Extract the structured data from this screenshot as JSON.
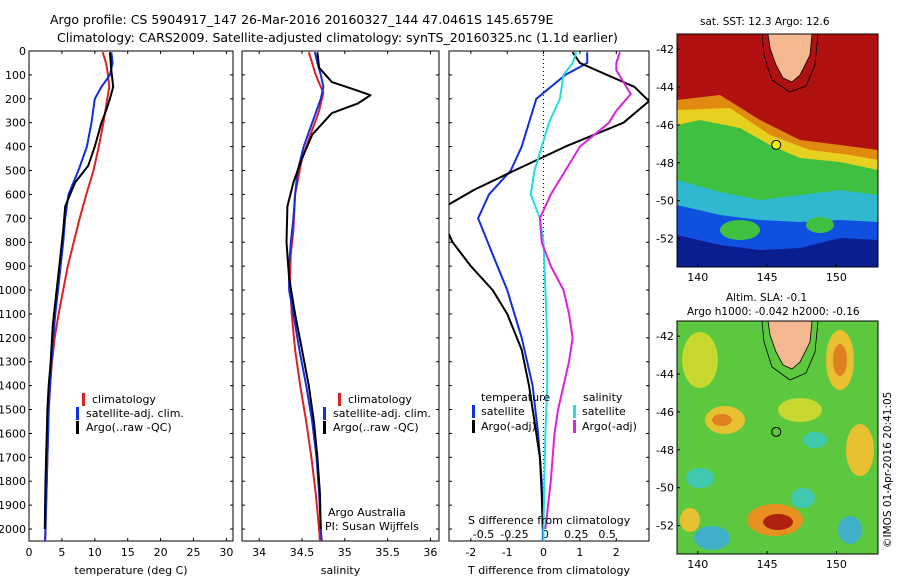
{
  "header": {
    "line1": "Argo profile: CS 5904917_147 26-Mar-2016 20160327_144 47.0461S 145.6579E",
    "line2": "Climatology: CARS2009. Satellite-adjusted climatology: synTS_20160325.nc (1.1d earlier)"
  },
  "colors": {
    "climatology": "#e02020",
    "satellite": "#1030e0",
    "argo": "#000000",
    "s_satellite": "#20e0e0",
    "s_argo": "#e020e0"
  },
  "chart_data": [
    {
      "type": "line",
      "xlabel": "temperature (deg C)",
      "xlim": [
        0,
        31
      ],
      "xticks": [
        0,
        5,
        10,
        15,
        20,
        25,
        30
      ],
      "ylim": [
        2050,
        0
      ],
      "yticks": [
        0,
        100,
        200,
        300,
        400,
        500,
        600,
        700,
        800,
        900,
        1000,
        1100,
        1200,
        1300,
        1400,
        1500,
        1600,
        1700,
        1800,
        1900,
        2000
      ],
      "legend": [
        "climatology",
        "satellite-adj. clim.",
        "Argo(..raw -QC)"
      ],
      "series": [
        {
          "name": "climatology",
          "color": "#e02020",
          "points": [
            [
              11.2,
              5
            ],
            [
              11.7,
              50
            ],
            [
              12,
              100
            ],
            [
              12.2,
              150
            ],
            [
              11.9,
              200
            ],
            [
              11.3,
              300
            ],
            [
              10.6,
              400
            ],
            [
              9.8,
              500
            ],
            [
              8.7,
              600
            ],
            [
              7.7,
              700
            ],
            [
              6.8,
              800
            ],
            [
              5.9,
              900
            ],
            [
              5.2,
              1000
            ],
            [
              4.5,
              1100
            ],
            [
              3.9,
              1200
            ],
            [
              3.5,
              1300
            ],
            [
              3.2,
              1400
            ],
            [
              3,
              1500
            ],
            [
              2.9,
              1600
            ],
            [
              2.8,
              1700
            ],
            [
              2.7,
              1800
            ],
            [
              2.6,
              1900
            ],
            [
              2.5,
              2000
            ],
            [
              2.45,
              2050
            ]
          ]
        },
        {
          "name": "satellite-adj. clim.",
          "color": "#1030e0",
          "points": [
            [
              12.5,
              5
            ],
            [
              12.7,
              50
            ],
            [
              12.3,
              100
            ],
            [
              11,
              150
            ],
            [
              10,
              200
            ],
            [
              9.5,
              300
            ],
            [
              8.8,
              400
            ],
            [
              7.5,
              500
            ],
            [
              6,
              600
            ],
            [
              5.5,
              700
            ],
            [
              5.2,
              800
            ],
            [
              4.8,
              900
            ],
            [
              4.4,
              1000
            ],
            [
              4,
              1100
            ],
            [
              3.7,
              1200
            ],
            [
              3.4,
              1300
            ],
            [
              3.2,
              1400
            ],
            [
              3,
              1500
            ],
            [
              2.9,
              1600
            ],
            [
              2.8,
              1700
            ],
            [
              2.7,
              1800
            ],
            [
              2.6,
              1900
            ],
            [
              2.5,
              2000
            ],
            [
              2.45,
              2050
            ]
          ]
        },
        {
          "name": "Argo(..raw -QC)",
          "color": "#000000",
          "points": [
            [
              12.3,
              5
            ],
            [
              12.5,
              80
            ],
            [
              12.8,
              150
            ],
            [
              12.3,
              200
            ],
            [
              11.7,
              250
            ],
            [
              11,
              300
            ],
            [
              10,
              400
            ],
            [
              9,
              480
            ],
            [
              7,
              550
            ],
            [
              5.5,
              650
            ],
            [
              5.2,
              750
            ],
            [
              4.8,
              850
            ],
            [
              4.4,
              950
            ],
            [
              4,
              1050
            ],
            [
              3.6,
              1150
            ],
            [
              3.3,
              1300
            ],
            [
              3,
              1400
            ],
            [
              2.8,
              1500
            ],
            [
              2.7,
              1600
            ],
            [
              2.6,
              1700
            ],
            [
              2.5,
              1800
            ],
            [
              2.45,
              1900
            ],
            [
              2.4,
              2000
            ]
          ]
        }
      ]
    },
    {
      "type": "line",
      "xlabel": "salinity",
      "xlim": [
        33.8,
        36.1
      ],
      "xticks": [
        34,
        34.5,
        35,
        35.5,
        36
      ],
      "ylim": [
        2050,
        0
      ],
      "legend": [
        "climatology",
        "satellite-adj. clim.",
        "Argo(..raw -QC)"
      ],
      "annotations": [
        "Argo Australia",
        "PI: Susan Wijffels"
      ],
      "series": [
        {
          "name": "climatology",
          "color": "#e02020",
          "points": [
            [
              34.58,
              5
            ],
            [
              34.62,
              50
            ],
            [
              34.66,
              100
            ],
            [
              34.72,
              150
            ],
            [
              34.75,
              175
            ],
            [
              34.7,
              250
            ],
            [
              34.6,
              350
            ],
            [
              34.5,
              450
            ],
            [
              34.42,
              600
            ],
            [
              34.4,
              750
            ],
            [
              34.37,
              850
            ],
            [
              34.36,
              950
            ],
            [
              34.38,
              1100
            ],
            [
              34.42,
              1250
            ],
            [
              34.48,
              1400
            ],
            [
              34.55,
              1550
            ],
            [
              34.61,
              1700
            ],
            [
              34.66,
              1850
            ],
            [
              34.7,
              2000
            ],
            [
              34.71,
              2050
            ]
          ]
        },
        {
          "name": "satellite-adj. clim.",
          "color": "#1030e0",
          "points": [
            [
              34.65,
              5
            ],
            [
              34.68,
              50
            ],
            [
              34.72,
              100
            ],
            [
              34.75,
              150
            ],
            [
              34.72,
              200
            ],
            [
              34.62,
              300
            ],
            [
              34.52,
              400
            ],
            [
              34.45,
              500
            ],
            [
              34.42,
              600
            ],
            [
              34.4,
              700
            ],
            [
              34.37,
              800
            ],
            [
              34.35,
              900
            ],
            [
              34.35,
              1000
            ],
            [
              34.4,
              1100
            ],
            [
              34.47,
              1250
            ],
            [
              34.55,
              1400
            ],
            [
              34.62,
              1550
            ],
            [
              34.67,
              1700
            ],
            [
              34.7,
              1850
            ],
            [
              34.72,
              2000
            ],
            [
              34.73,
              2050
            ]
          ]
        },
        {
          "name": "Argo(..raw -QC)",
          "color": "#000000",
          "points": [
            [
              34.68,
              5
            ],
            [
              34.7,
              70
            ],
            [
              34.85,
              130
            ],
            [
              35.1,
              160
            ],
            [
              35.3,
              185
            ],
            [
              35.15,
              220
            ],
            [
              34.85,
              260
            ],
            [
              34.62,
              350
            ],
            [
              34.5,
              450
            ],
            [
              34.4,
              550
            ],
            [
              34.33,
              650
            ],
            [
              34.32,
              800
            ],
            [
              34.35,
              950
            ],
            [
              34.42,
              1100
            ],
            [
              34.5,
              1250
            ],
            [
              34.58,
              1400
            ],
            [
              34.64,
              1550
            ],
            [
              34.68,
              1700
            ],
            [
              34.71,
              1850
            ],
            [
              34.72,
              2000
            ]
          ]
        }
      ]
    },
    {
      "type": "line",
      "xlabel": "T difference from climatology",
      "xlabel_top": "S difference from climatology",
      "xlim": [
        -2.6,
        2.9
      ],
      "xticks": [
        -2,
        -1,
        0,
        1,
        2
      ],
      "xticks_top": [
        "-0.5",
        "-0.25",
        "0",
        "0.25",
        "0.5"
      ],
      "ylim": [
        2050,
        0
      ],
      "legend_titles": [
        "temperature",
        "salinity"
      ],
      "legend": [
        "satellite",
        "Argo(-adj)",
        "satellite",
        "Argo(-adj)"
      ],
      "series": [
        {
          "name": "satellite",
          "group": "temperature",
          "color": "#1030e0",
          "points": [
            [
              1.2,
              5
            ],
            [
              1.2,
              50
            ],
            [
              0.6,
              100
            ],
            [
              -0.2,
              200
            ],
            [
              -0.6,
              400
            ],
            [
              -0.9,
              500
            ],
            [
              -1.5,
              600
            ],
            [
              -1.8,
              700
            ],
            [
              -1.4,
              850
            ],
            [
              -1,
              1000
            ],
            [
              -0.6,
              1200
            ],
            [
              -0.3,
              1400
            ],
            [
              -0.15,
              1600
            ],
            [
              -0.05,
              1800
            ],
            [
              -0.02,
              2000
            ],
            [
              -0.02,
              2050
            ]
          ]
        },
        {
          "name": "Argo(-adj)",
          "group": "temperature",
          "color": "#000000",
          "points": [
            [
              0.8,
              5
            ],
            [
              1,
              50
            ],
            [
              2.5,
              150
            ],
            [
              2.9,
              210
            ],
            [
              2.2,
              300
            ],
            [
              0.6,
              400
            ],
            [
              -0.8,
              500
            ],
            [
              -1.9,
              580
            ],
            [
              -2.7,
              650
            ],
            [
              -2.8,
              700
            ],
            [
              -2.5,
              800
            ],
            [
              -2,
              900
            ],
            [
              -1.4,
              1000
            ],
            [
              -1,
              1100
            ],
            [
              -0.6,
              1250
            ],
            [
              -0.4,
              1400
            ],
            [
              -0.25,
              1550
            ],
            [
              -0.1,
              1700
            ],
            [
              -0.05,
              1850
            ],
            [
              -0.02,
              2000
            ]
          ]
        },
        {
          "name": "satellite",
          "group": "salinity",
          "color": "#20e0e0",
          "points": [
            [
              0.9,
              5
            ],
            [
              0.8,
              50
            ],
            [
              0.55,
              100
            ],
            [
              0.45,
              200
            ],
            [
              0.15,
              300
            ],
            [
              -0.05,
              400
            ],
            [
              -0.25,
              500
            ],
            [
              -0.35,
              600
            ],
            [
              -0.1,
              700
            ],
            [
              0,
              800
            ],
            [
              0.05,
              1000
            ],
            [
              0.1,
              1200
            ],
            [
              0.1,
              1400
            ],
            [
              0.05,
              1600
            ],
            [
              0.02,
              1800
            ],
            [
              0,
              2000
            ],
            [
              0,
              2050
            ]
          ]
        },
        {
          "name": "Argo(-adj)",
          "group": "salinity",
          "color": "#e020e0",
          "points": [
            [
              2.1,
              5
            ],
            [
              2,
              50
            ],
            [
              2,
              80
            ],
            [
              2.2,
              130
            ],
            [
              2.4,
              180
            ],
            [
              2,
              250
            ],
            [
              1.8,
              300
            ],
            [
              1,
              400
            ],
            [
              0.6,
              500
            ],
            [
              0.2,
              600
            ],
            [
              -0.1,
              700
            ],
            [
              -0.05,
              800
            ],
            [
              0.2,
              900
            ],
            [
              0.55,
              1000
            ],
            [
              0.7,
              1100
            ],
            [
              0.8,
              1200
            ],
            [
              0.7,
              1300
            ],
            [
              0.55,
              1400
            ],
            [
              0.4,
              1500
            ],
            [
              0.3,
              1600
            ],
            [
              0.2,
              1800
            ],
            [
              0.05,
              2000
            ]
          ]
        }
      ]
    }
  ],
  "maps": [
    {
      "title": "sat. SST: 12.3 Argo: 12.6",
      "xticks": [
        "140",
        "145",
        "150"
      ],
      "yticks": [
        "-42",
        "-44",
        "-46",
        "-48",
        "-50",
        "-52"
      ],
      "lon_range": [
        138.5,
        153
      ],
      "lat_range": [
        -53.5,
        -41.2
      ],
      "marker": [
        145.66,
        -47.05
      ]
    },
    {
      "title1": "Altim. SLA: -0.1",
      "title2": "Argo h1000: -0.042 h2000: -0.16",
      "xticks": [
        "140",
        "145",
        "150"
      ],
      "yticks": [
        "-42",
        "-44",
        "-46",
        "-48",
        "-50",
        "-52"
      ],
      "lon_range": [
        138.5,
        153
      ],
      "lat_range": [
        -53.5,
        -41.2
      ],
      "marker": [
        145.66,
        -47.05
      ]
    }
  ],
  "watermark": "©IMOS 01-Apr-2016 20:41:05"
}
